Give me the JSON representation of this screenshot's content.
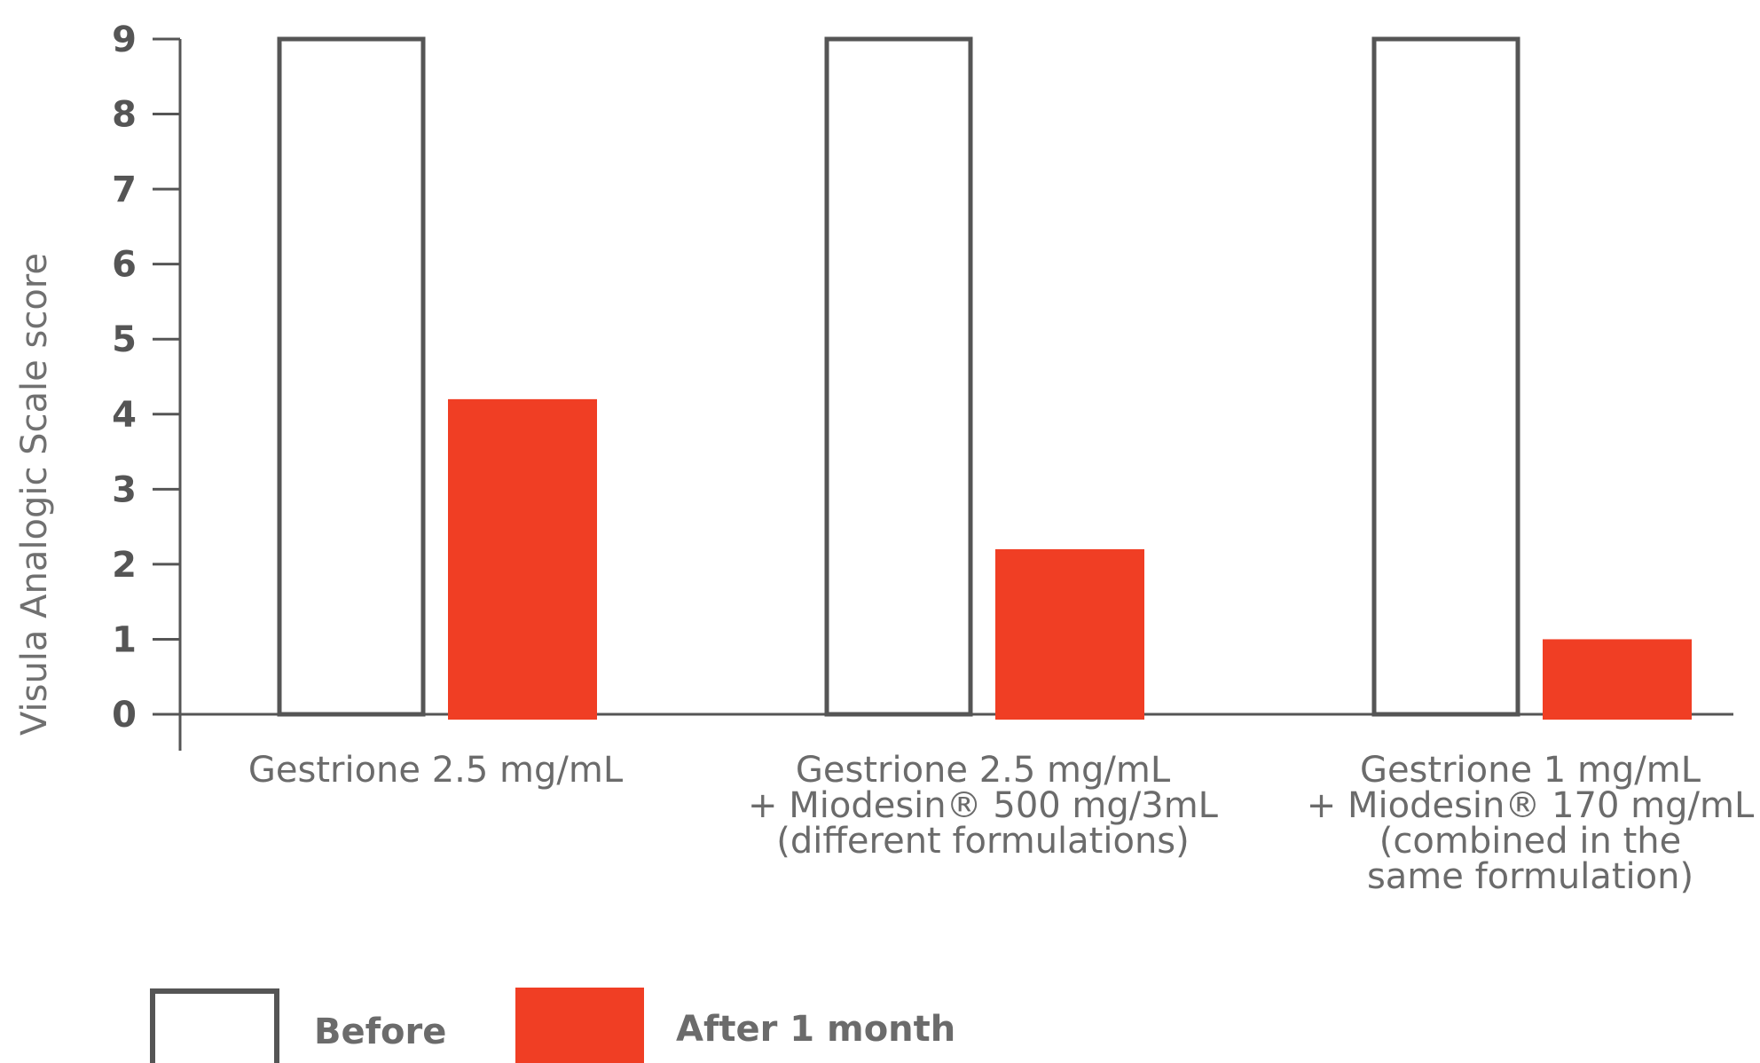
{
  "chart_data": {
    "type": "bar",
    "title": "",
    "xlabel": "",
    "ylabel": "Visula Analogic Scale score",
    "ylim": [
      0,
      9
    ],
    "yticks": [
      "0",
      "1",
      "2",
      "3",
      "4",
      "5",
      "6",
      "7",
      "8",
      "9"
    ],
    "grid": false,
    "legend_position": "bottom-left",
    "categories": [
      [
        "Gestrione 2.5 mg/mL"
      ],
      [
        "Gestrione 2.5 mg/mL",
        "+ Miodesin® 500 mg/3mL",
        "(different formulations)"
      ],
      [
        "Gestrione 1 mg/mL",
        "+ Miodesin® 170 mg/mL",
        "(combined in the",
        "same formulation)"
      ]
    ],
    "series": [
      {
        "name": "Before",
        "values": [
          9,
          9,
          9
        ],
        "style": "outline",
        "color": "#555555"
      },
      {
        "name": "After 1 month",
        "values": [
          4.2,
          2.2,
          1.0
        ],
        "style": "filled",
        "color": "#f03e24"
      }
    ]
  }
}
